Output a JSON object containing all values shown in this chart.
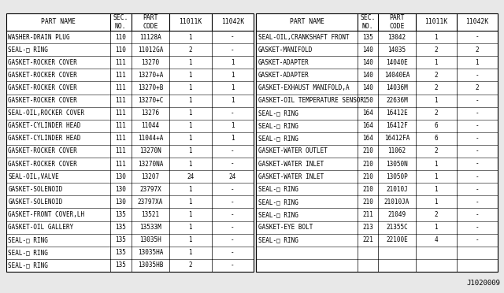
{
  "footnote": "J1020009",
  "left_table": {
    "headers": [
      "PART NAME",
      "SEC.\nNO.",
      "PART\nCODE",
      "11011K",
      "11042K"
    ],
    "rows": [
      [
        "WASHER-DRAIN PLUG",
        "110",
        "11128A",
        "1",
        "-"
      ],
      [
        "SEAL-□ RING",
        "110",
        "11012GA",
        "2",
        "-"
      ],
      [
        "GASKET-ROCKER COVER",
        "111",
        "13270",
        "1",
        "1"
      ],
      [
        "GASKET-ROCKER COVER",
        "111",
        "13270+A",
        "1",
        "1"
      ],
      [
        "GASKET-ROCKER COVER",
        "111",
        "13270+B",
        "1",
        "1"
      ],
      [
        "GASKET-ROCKER COVER",
        "111",
        "13270+C",
        "1",
        "1"
      ],
      [
        "SEAL-OIL,ROCKER COVER",
        "111",
        "13276",
        "1",
        "-"
      ],
      [
        "GASKET-CYLINDER HEAD",
        "111",
        "11044",
        "1",
        "1"
      ],
      [
        "GASKET-CYLINDER HEAD",
        "111",
        "11044+A",
        "1",
        "1"
      ],
      [
        "GASKET-ROCKER COVER",
        "111",
        "13270N",
        "1",
        "-"
      ],
      [
        "GASKET-ROCKER COVER",
        "111",
        "13270NA",
        "1",
        "-"
      ],
      [
        "SEAL-OIL,VALVE",
        "130",
        "13207",
        "24",
        "24"
      ],
      [
        "GASKET-SOLENOID",
        "130",
        "23797X",
        "1",
        "-"
      ],
      [
        "GASKET-SOLENOID",
        "130",
        "23797XA",
        "1",
        "-"
      ],
      [
        "GASKET-FRONT COVER,LH",
        "135",
        "13521",
        "1",
        "-"
      ],
      [
        "GASKET-OIL GALLERY",
        "135",
        "13533M",
        "1",
        "-"
      ],
      [
        "SEAL-□ RING",
        "135",
        "13035H",
        "1",
        "-"
      ],
      [
        "SEAL-□ RING",
        "135",
        "13035HA",
        "1",
        "-"
      ],
      [
        "SEAL-□ RING",
        "135",
        "13035HB",
        "2",
        "-"
      ]
    ]
  },
  "right_table": {
    "headers": [
      "PART NAME",
      "SEC.\nNO.",
      "PART\nCODE",
      "11011K",
      "11042K"
    ],
    "rows": [
      [
        "SEAL-OIL,CRANKSHAFT FRONT",
        "135",
        "13042",
        "1",
        "-"
      ],
      [
        "GASKET-MANIFOLD",
        "140",
        "14035",
        "2",
        "2"
      ],
      [
        "GASKET-ADAPTER",
        "140",
        "14040E",
        "1",
        "1"
      ],
      [
        "GASKET-ADAPTER",
        "140",
        "14040EA",
        "2",
        "-"
      ],
      [
        "GASKET-EXHAUST MANIFOLD,A",
        "140",
        "14036M",
        "2",
        "2"
      ],
      [
        "GASKET-OIL TEMPERATURE SENSOR",
        "150",
        "22636M",
        "1",
        "-"
      ],
      [
        "SEAL-□ RING",
        "164",
        "16412E",
        "2",
        "-"
      ],
      [
        "SEAL-□ RING",
        "164",
        "16412F",
        "6",
        "-"
      ],
      [
        "SEAL-□ RING",
        "164",
        "16412FA",
        "6",
        "-"
      ],
      [
        "GASKET-WATER OUTLET",
        "210",
        "11062",
        "2",
        "-"
      ],
      [
        "GASKET-WATER INLET",
        "210",
        "13050N",
        "1",
        "-"
      ],
      [
        "GASKET-WATER INLET",
        "210",
        "13050P",
        "1",
        "-"
      ],
      [
        "SEAL-□ RING",
        "210",
        "21010J",
        "1",
        "-"
      ],
      [
        "SEAL-□ RING",
        "210",
        "21010JA",
        "1",
        "-"
      ],
      [
        "SEAL-□ RING",
        "211",
        "21049",
        "2",
        "-"
      ],
      [
        "GASKET-EYE BOLT",
        "213",
        "21355C",
        "1",
        "-"
      ],
      [
        "SEAL-□ RING",
        "221",
        "22100E",
        "4",
        "-"
      ],
      [
        "",
        "",
        "",
        "",
        ""
      ],
      [
        "",
        "",
        "",
        "",
        ""
      ]
    ]
  },
  "bg_color": "#e8e8e8",
  "font_size": 5.5,
  "header_font_size": 5.8
}
